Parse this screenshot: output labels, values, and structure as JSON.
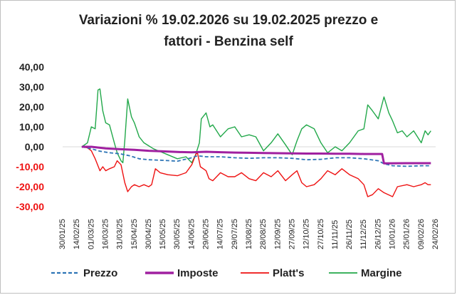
{
  "chart_data": {
    "type": "line",
    "title": "Variazioni % 19.02.2026 su 19.02.2025 prezzo e fattori - Benzina self",
    "title_lines": [
      "Variazioni % 19.02.2026 su 19.02.2025 prezzo e",
      "fattori - Benzina self"
    ],
    "xlabel": "",
    "ylabel": "",
    "ylim": [
      -30,
      40
    ],
    "y_ticks": [
      40,
      30,
      20,
      10,
      0,
      -10,
      -20,
      -30
    ],
    "y_tick_labels": [
      "40,00",
      "30,00",
      "20,00",
      "10,00",
      "0,00",
      "-10,00",
      "-20,00",
      "-30,00"
    ],
    "x_tick_labels": [
      "30/01/25",
      "14/02/25",
      "01/03/25",
      "16/03/25",
      "31/03/25",
      "15/04/25",
      "30/04/25",
      "15/05/25",
      "30/05/25",
      "14/06/25",
      "29/06/25",
      "14/07/25",
      "29/07/25",
      "13/08/25",
      "28/08/25",
      "12/09/25",
      "27/09/25",
      "12/10/25",
      "27/10/25",
      "11/11/25",
      "26/11/25",
      "11/12/25",
      "26/12/25",
      "10/01/26",
      "25/01/26",
      "09/02/26",
      "24/02/26"
    ],
    "grid": false,
    "legend_position": "bottom",
    "colors": {
      "prezzo": "#2e75b6",
      "imposte": "#a020a0",
      "platts": "#ee1111",
      "margine": "#22a84a",
      "negative_ticks": "#ee1111",
      "axis": "#d9d9d9"
    },
    "series": [
      {
        "name": "Prezzo",
        "key": "prezzo",
        "style": "dashed",
        "points": [
          [
            "2025-02-19",
            0
          ],
          [
            "2025-03-01",
            -1.0
          ],
          [
            "2025-03-10",
            -2.2
          ],
          [
            "2025-03-20",
            -3.0
          ],
          [
            "2025-03-31",
            -3.5
          ],
          [
            "2025-04-10",
            -4.5
          ],
          [
            "2025-04-20",
            -6.0
          ],
          [
            "2025-04-30",
            -6.5
          ],
          [
            "2025-05-15",
            -6.8
          ],
          [
            "2025-05-30",
            -7.2
          ],
          [
            "2025-06-14",
            -5.5
          ],
          [
            "2025-06-20",
            -4.5
          ],
          [
            "2025-06-29",
            -5.0
          ],
          [
            "2025-07-14",
            -5.0
          ],
          [
            "2025-07-29",
            -5.5
          ],
          [
            "2025-08-13",
            -5.8
          ],
          [
            "2025-08-28",
            -5.5
          ],
          [
            "2025-09-12",
            -5.5
          ],
          [
            "2025-09-27",
            -5.8
          ],
          [
            "2025-10-12",
            -6.5
          ],
          [
            "2025-10-27",
            -6.3
          ],
          [
            "2025-11-11",
            -5.5
          ],
          [
            "2025-11-26",
            -5.5
          ],
          [
            "2025-12-11",
            -6.0
          ],
          [
            "2025-12-26",
            -7.0
          ],
          [
            "2026-01-01",
            -8.5
          ],
          [
            "2026-01-10",
            -9.5
          ],
          [
            "2026-01-25",
            -9.8
          ],
          [
            "2026-02-09",
            -9.5
          ],
          [
            "2026-02-19",
            -9.5
          ]
        ]
      },
      {
        "name": "Imposte",
        "key": "imposte",
        "style": "solid",
        "points": [
          [
            "2025-02-19",
            0
          ],
          [
            "2025-03-01",
            0
          ],
          [
            "2025-03-16",
            -0.8
          ],
          [
            "2025-03-31",
            -1.2
          ],
          [
            "2025-04-15",
            -1.5
          ],
          [
            "2025-04-30",
            -2.0
          ],
          [
            "2025-05-15",
            -2.3
          ],
          [
            "2025-05-30",
            -2.6
          ],
          [
            "2025-06-14",
            -2.8
          ],
          [
            "2025-06-29",
            -2.5
          ],
          [
            "2025-07-14",
            -2.7
          ],
          [
            "2025-07-29",
            -2.9
          ],
          [
            "2025-08-13",
            -3.0
          ],
          [
            "2025-08-28",
            -3.1
          ],
          [
            "2025-09-12",
            -3.2
          ],
          [
            "2025-09-27",
            -3.3
          ],
          [
            "2025-10-12",
            -3.4
          ],
          [
            "2025-10-27",
            -3.4
          ],
          [
            "2025-11-11",
            -3.5
          ],
          [
            "2025-11-26",
            -3.5
          ],
          [
            "2025-12-11",
            -3.6
          ],
          [
            "2025-12-30",
            -3.6
          ],
          [
            "2026-01-01",
            -8.3
          ],
          [
            "2026-01-25",
            -8.2
          ],
          [
            "2026-02-19",
            -8.2
          ]
        ]
      },
      {
        "name": "Platt's",
        "key": "platts",
        "style": "solid",
        "points": [
          [
            "2025-02-19",
            0
          ],
          [
            "2025-02-25",
            -0.5
          ],
          [
            "2025-03-01",
            -2.0
          ],
          [
            "2025-03-05",
            -6.0
          ],
          [
            "2025-03-10",
            -12.0
          ],
          [
            "2025-03-13",
            -10.0
          ],
          [
            "2025-03-16",
            -12.0
          ],
          [
            "2025-03-20",
            -11.0
          ],
          [
            "2025-03-25",
            -10.0
          ],
          [
            "2025-03-28",
            -7.0
          ],
          [
            "2025-04-01",
            -9.0
          ],
          [
            "2025-04-05",
            -18.0
          ],
          [
            "2025-04-08",
            -22.5
          ],
          [
            "2025-04-12",
            -20.0
          ],
          [
            "2025-04-15",
            -19.0
          ],
          [
            "2025-04-20",
            -20.0
          ],
          [
            "2025-04-25",
            -19.0
          ],
          [
            "2025-04-30",
            -20.0
          ],
          [
            "2025-05-03",
            -19.0
          ],
          [
            "2025-05-07",
            -11.0
          ],
          [
            "2025-05-12",
            -13.0
          ],
          [
            "2025-05-20",
            -14.0
          ],
          [
            "2025-05-30",
            -14.5
          ],
          [
            "2025-06-08",
            -13.0
          ],
          [
            "2025-06-14",
            -9.0
          ],
          [
            "2025-06-18",
            -4.0
          ],
          [
            "2025-06-20",
            -3.0
          ],
          [
            "2025-06-23",
            -10.0
          ],
          [
            "2025-06-29",
            -12.0
          ],
          [
            "2025-07-02",
            -16.0
          ],
          [
            "2025-07-06",
            -17.0
          ],
          [
            "2025-07-14",
            -13.0
          ],
          [
            "2025-07-22",
            -15.0
          ],
          [
            "2025-07-29",
            -15.0
          ],
          [
            "2025-08-05",
            -13.0
          ],
          [
            "2025-08-13",
            -16.0
          ],
          [
            "2025-08-20",
            -17.0
          ],
          [
            "2025-08-28",
            -13.0
          ],
          [
            "2025-09-05",
            -15.0
          ],
          [
            "2025-09-12",
            -12.0
          ],
          [
            "2025-09-20",
            -17.0
          ],
          [
            "2025-09-27",
            -14.0
          ],
          [
            "2025-10-02",
            -12.0
          ],
          [
            "2025-10-07",
            -18.0
          ],
          [
            "2025-10-12",
            -20.0
          ],
          [
            "2025-10-20",
            -19.0
          ],
          [
            "2025-10-27",
            -16.0
          ],
          [
            "2025-11-03",
            -12.0
          ],
          [
            "2025-11-11",
            -14.0
          ],
          [
            "2025-11-18",
            -11.0
          ],
          [
            "2025-11-26",
            -14.0
          ],
          [
            "2025-12-05",
            -16.0
          ],
          [
            "2025-12-11",
            -19.0
          ],
          [
            "2025-12-15",
            -25.0
          ],
          [
            "2025-12-20",
            -24.0
          ],
          [
            "2025-12-26",
            -21.0
          ],
          [
            "2026-01-01",
            -23.0
          ],
          [
            "2026-01-10",
            -25.0
          ],
          [
            "2026-01-15",
            -20.0
          ],
          [
            "2026-01-25",
            -19.0
          ],
          [
            "2026-02-01",
            -20.0
          ],
          [
            "2026-02-09",
            -19.0
          ],
          [
            "2026-02-13",
            -18.0
          ],
          [
            "2026-02-16",
            -19.0
          ],
          [
            "2026-02-19",
            -19.0
          ]
        ]
      },
      {
        "name": "Margine",
        "key": "margine",
        "style": "solid",
        "points": [
          [
            "2025-02-19",
            0
          ],
          [
            "2025-02-25",
            2.0
          ],
          [
            "2025-03-01",
            10.0
          ],
          [
            "2025-03-05",
            9.0
          ],
          [
            "2025-03-08",
            28.5
          ],
          [
            "2025-03-10",
            29.0
          ],
          [
            "2025-03-13",
            18.0
          ],
          [
            "2025-03-16",
            12.0
          ],
          [
            "2025-03-20",
            11.0
          ],
          [
            "2025-03-25",
            2.0
          ],
          [
            "2025-03-28",
            -3.0
          ],
          [
            "2025-04-01",
            -7.0
          ],
          [
            "2025-04-03",
            -8.0
          ],
          [
            "2025-04-05",
            3.0
          ],
          [
            "2025-04-08",
            24.0
          ],
          [
            "2025-04-12",
            15.0
          ],
          [
            "2025-04-15",
            12.0
          ],
          [
            "2025-04-20",
            5.0
          ],
          [
            "2025-04-25",
            2.0
          ],
          [
            "2025-04-30",
            0.5
          ],
          [
            "2025-05-05",
            -1.0
          ],
          [
            "2025-05-10",
            -2.0
          ],
          [
            "2025-05-20",
            -4.0
          ],
          [
            "2025-05-30",
            -6.0
          ],
          [
            "2025-06-08",
            -5.0
          ],
          [
            "2025-06-14",
            -8.0
          ],
          [
            "2025-06-18",
            -4.0
          ],
          [
            "2025-06-22",
            2.0
          ],
          [
            "2025-06-24",
            14.0
          ],
          [
            "2025-06-29",
            17.0
          ],
          [
            "2025-07-03",
            10.0
          ],
          [
            "2025-07-06",
            11.0
          ],
          [
            "2025-07-14",
            5.0
          ],
          [
            "2025-07-22",
            9.0
          ],
          [
            "2025-07-29",
            10.0
          ],
          [
            "2025-08-05",
            5.0
          ],
          [
            "2025-08-13",
            6.0
          ],
          [
            "2025-08-20",
            5.0
          ],
          [
            "2025-08-28",
            -2.0
          ],
          [
            "2025-09-05",
            2.0
          ],
          [
            "2025-09-12",
            6.5
          ],
          [
            "2025-09-20",
            1.0
          ],
          [
            "2025-09-27",
            -4.0
          ],
          [
            "2025-10-02",
            3.0
          ],
          [
            "2025-10-07",
            9.0
          ],
          [
            "2025-10-12",
            11.0
          ],
          [
            "2025-10-20",
            9.0
          ],
          [
            "2025-10-27",
            2.0
          ],
          [
            "2025-11-03",
            -3.0
          ],
          [
            "2025-11-11",
            0.0
          ],
          [
            "2025-11-18",
            -2.0
          ],
          [
            "2025-11-26",
            2.0
          ],
          [
            "2025-12-05",
            8.0
          ],
          [
            "2025-12-11",
            9.0
          ],
          [
            "2025-12-15",
            21.0
          ],
          [
            "2025-12-20",
            18.0
          ],
          [
            "2025-12-26",
            14.0
          ],
          [
            "2026-01-01",
            25.0
          ],
          [
            "2026-01-06",
            17.0
          ],
          [
            "2026-01-10",
            13.0
          ],
          [
            "2026-01-15",
            7.0
          ],
          [
            "2026-01-20",
            8.0
          ],
          [
            "2026-01-25",
            5.0
          ],
          [
            "2026-02-01",
            8.0
          ],
          [
            "2026-02-09",
            2.0
          ],
          [
            "2026-02-13",
            8.0
          ],
          [
            "2026-02-16",
            6.0
          ],
          [
            "2026-02-19",
            8.0
          ]
        ]
      }
    ]
  }
}
